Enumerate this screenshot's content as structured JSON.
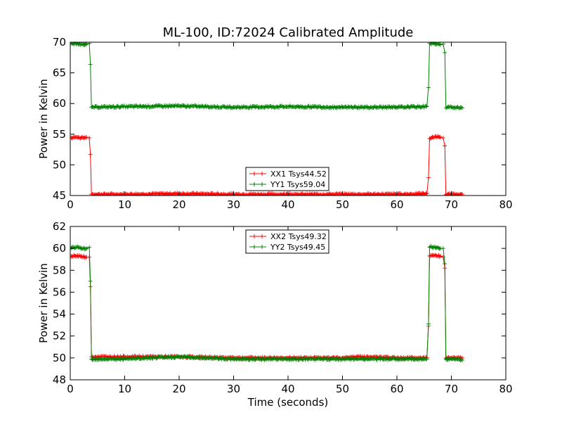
{
  "chart_data": [
    {
      "type": "line",
      "title": "ML-100, ID:72024 Calibrated Amplitude",
      "xlabel": "",
      "ylabel": "Power in Kelvin",
      "xlim": [
        0,
        80
      ],
      "ylim": [
        45,
        70
      ],
      "xticks": [
        0,
        10,
        20,
        30,
        40,
        50,
        60,
        70,
        80
      ],
      "yticks": [
        45,
        50,
        55,
        60,
        65,
        70
      ],
      "grid": false,
      "legend_placement": "lower-center",
      "series": [
        {
          "name": "XX1 Tsys44.52",
          "color": "#ff0000",
          "points": [
            [
              0,
              54.4
            ],
            [
              1,
              54.5
            ],
            [
              2,
              54.4
            ],
            [
              3,
              54.5
            ],
            [
              3.5,
              54.4
            ],
            [
              3.7,
              51.7
            ],
            [
              3.9,
              45.2
            ],
            [
              10,
              45.2
            ],
            [
              20,
              45.3
            ],
            [
              30,
              45.2
            ],
            [
              40,
              45.2
            ],
            [
              50,
              45.2
            ],
            [
              60,
              45.2
            ],
            [
              65.5,
              45.3
            ],
            [
              65.8,
              47.9
            ],
            [
              66,
              54.3
            ],
            [
              67,
              54.6
            ],
            [
              68,
              54.5
            ],
            [
              68.5,
              54.4
            ],
            [
              68.8,
              53.1
            ],
            [
              69,
              45.2
            ],
            [
              70,
              45.2
            ],
            [
              71,
              45.2
            ],
            [
              72,
              45.2
            ]
          ]
        },
        {
          "name": "YY1 Tsys59.04",
          "color": "#008000",
          "points": [
            [
              0,
              69.7
            ],
            [
              1,
              69.8
            ],
            [
              2,
              69.7
            ],
            [
              3,
              69.7
            ],
            [
              3.5,
              69.8
            ],
            [
              3.7,
              66.4
            ],
            [
              3.9,
              59.4
            ],
            [
              10,
              59.5
            ],
            [
              20,
              59.6
            ],
            [
              30,
              59.4
            ],
            [
              40,
              59.5
            ],
            [
              50,
              59.4
            ],
            [
              60,
              59.4
            ],
            [
              65.5,
              59.5
            ],
            [
              65.8,
              62.6
            ],
            [
              66,
              69.8
            ],
            [
              67,
              69.8
            ],
            [
              68,
              69.6
            ],
            [
              68.5,
              69.7
            ],
            [
              68.8,
              68.3
            ],
            [
              69,
              59.3
            ],
            [
              70,
              59.4
            ],
            [
              71,
              59.4
            ],
            [
              72,
              59.3
            ]
          ]
        }
      ]
    },
    {
      "type": "line",
      "title": "",
      "xlabel": "Time (seconds)",
      "ylabel": "Power in Kelvin",
      "xlim": [
        0,
        80
      ],
      "ylim": [
        48,
        62
      ],
      "xticks": [
        0,
        10,
        20,
        30,
        40,
        50,
        60,
        70,
        80
      ],
      "yticks": [
        48,
        50,
        52,
        54,
        56,
        58,
        60,
        62
      ],
      "grid": false,
      "legend_placement": "upper-center",
      "series": [
        {
          "name": "XX2 Tsys49.32",
          "color": "#ff0000",
          "points": [
            [
              0,
              59.3
            ],
            [
              1,
              59.3
            ],
            [
              2,
              59.3
            ],
            [
              3,
              59.2
            ],
            [
              3.5,
              59.2
            ],
            [
              3.7,
              56.5
            ],
            [
              3.9,
              50.1
            ],
            [
              10,
              50.1
            ],
            [
              20,
              50.1
            ],
            [
              30,
              50.0
            ],
            [
              40,
              50.0
            ],
            [
              50,
              50.0
            ],
            [
              53,
              50.1
            ],
            [
              60,
              50.0
            ],
            [
              65.5,
              50.0
            ],
            [
              65.8,
              52.9
            ],
            [
              66,
              59.3
            ],
            [
              67,
              59.4
            ],
            [
              68,
              59.3
            ],
            [
              68.5,
              59.2
            ],
            [
              68.8,
              58.2
            ],
            [
              69,
              50.0
            ],
            [
              70,
              50.0
            ],
            [
              71,
              50.0
            ],
            [
              72,
              50.0
            ]
          ]
        },
        {
          "name": "YY2 Tsys49.45",
          "color": "#008000",
          "points": [
            [
              0,
              60.0
            ],
            [
              1,
              60.1
            ],
            [
              2,
              60.0
            ],
            [
              3,
              60.0
            ],
            [
              3.5,
              60.1
            ],
            [
              3.7,
              57.0
            ],
            [
              3.9,
              49.9
            ],
            [
              10,
              49.9
            ],
            [
              20,
              50.1
            ],
            [
              30,
              49.9
            ],
            [
              40,
              49.9
            ],
            [
              50,
              49.9
            ],
            [
              60,
              49.9
            ],
            [
              65.5,
              49.9
            ],
            [
              65.8,
              53.1
            ],
            [
              66,
              60.1
            ],
            [
              67,
              60.1
            ],
            [
              68,
              60.0
            ],
            [
              68.5,
              60.0
            ],
            [
              68.8,
              58.6
            ],
            [
              69,
              49.9
            ],
            [
              70,
              49.9
            ],
            [
              71,
              49.9
            ],
            [
              72,
              49.8
            ]
          ]
        }
      ]
    }
  ]
}
